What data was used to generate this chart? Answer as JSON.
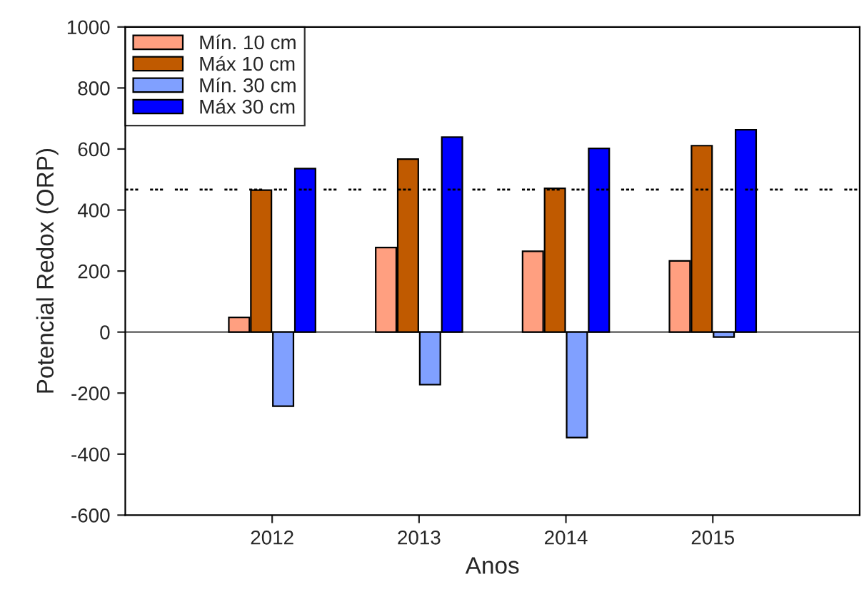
{
  "chart_data": {
    "type": "bar",
    "xlabel": "Anos",
    "ylabel": "Potencial Redox (ORP)",
    "categories": [
      "2012",
      "2013",
      "2014",
      "2015"
    ],
    "series": [
      {
        "name": "Mín. 10 cm",
        "color": "#ff9f80",
        "values": [
          48,
          277,
          265,
          233
        ]
      },
      {
        "name": "Máx 10 cm",
        "color": "#c05a00",
        "values": [
          465,
          567,
          471,
          611
        ]
      },
      {
        "name": "Mín. 30 cm",
        "color": "#80a0ff",
        "values": [
          -243,
          -172,
          -346,
          -16
        ]
      },
      {
        "name": "Máx 30 cm",
        "color": "#0000ff",
        "values": [
          536,
          639,
          602,
          663
        ]
      }
    ],
    "ylim": [
      -600,
      1000
    ],
    "yticks": [
      -600,
      -400,
      -200,
      0,
      200,
      400,
      600,
      800,
      1000
    ],
    "ref_lines": [
      {
        "axis": "y",
        "value": 0,
        "color": "#555555",
        "line_style": "solid"
      },
      {
        "axis": "y",
        "value": 467,
        "color": "#000000",
        "line_style": "dotted"
      }
    ],
    "legend": "top left"
  }
}
